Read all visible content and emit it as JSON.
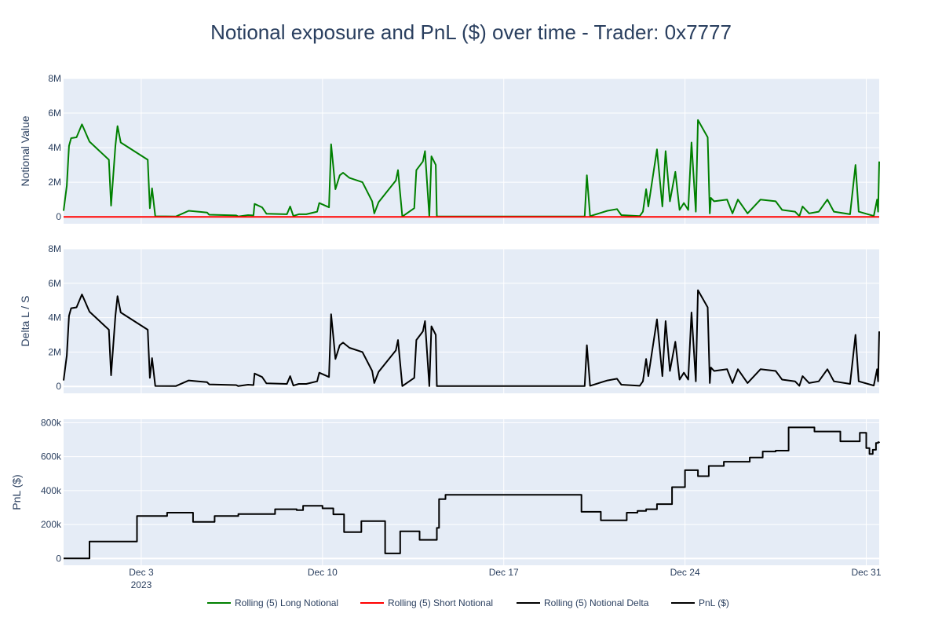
{
  "chart_data": {
    "type": "line",
    "title": "Notional exposure and PnL ($) over time - Trader: 0x7777",
    "x_axis": {
      "ticks": [
        {
          "date": "2023-12-03",
          "label": "Dec 3",
          "sublabel": "2023"
        },
        {
          "date": "2023-12-10",
          "label": "Dec 10",
          "sublabel": ""
        },
        {
          "date": "2023-12-17",
          "label": "Dec 17",
          "sublabel": ""
        },
        {
          "date": "2023-12-24",
          "label": "Dec 24",
          "sublabel": ""
        },
        {
          "date": "2023-12-31",
          "label": "Dec 31",
          "sublabel": ""
        }
      ],
      "xlim": [
        "2023-11-30",
        "2023-12-31 12:00"
      ]
    },
    "panels": [
      {
        "ylabel": "Notional Value",
        "ylim": [
          -400000,
          8000000
        ],
        "yticks": [
          0,
          2000000,
          4000000,
          6000000,
          8000000
        ],
        "ytick_labels": [
          "0",
          "2M",
          "4M",
          "6M",
          "8M"
        ],
        "series": [
          {
            "name": "Rolling (5) Long Notional",
            "color": "#008000",
            "points": [
              [
                "2023-11-30 00:00",
                350000
              ],
              [
                "2023-11-30 03:00",
                1800000
              ],
              [
                "2023-11-30 05:00",
                4100000
              ],
              [
                "2023-11-30 07:00",
                4550000
              ],
              [
                "2023-11-30 12:00",
                4600000
              ],
              [
                "2023-11-30 17:00",
                5350000
              ],
              [
                "2023-12-01 00:00",
                4350000
              ],
              [
                "2023-12-01 18:00",
                3300000
              ],
              [
                "2023-12-01 20:00",
                650000
              ],
              [
                "2023-12-02 00:00",
                4100000
              ],
              [
                "2023-12-02 02:00",
                5250000
              ],
              [
                "2023-12-02 05:00",
                4300000
              ],
              [
                "2023-12-03 06:00",
                3300000
              ],
              [
                "2023-12-03 08:00",
                500000
              ],
              [
                "2023-12-03 10:00",
                1650000
              ],
              [
                "2023-12-03 13:00",
                30000
              ],
              [
                "2023-12-04 08:00",
                20000
              ],
              [
                "2023-12-04 20:00",
                350000
              ],
              [
                "2023-12-05 13:00",
                250000
              ],
              [
                "2023-12-05 15:00",
                120000
              ],
              [
                "2023-12-06 16:00",
                80000
              ],
              [
                "2023-12-06 18:00",
                20000
              ],
              [
                "2023-12-07 03:00",
                100000
              ],
              [
                "2023-12-07 08:00",
                80000
              ],
              [
                "2023-12-07 09:00",
                750000
              ],
              [
                "2023-12-07 16:00",
                550000
              ],
              [
                "2023-12-07 20:00",
                180000
              ],
              [
                "2023-12-08 15:00",
                150000
              ],
              [
                "2023-12-08 18:00",
                600000
              ],
              [
                "2023-12-08 21:00",
                50000
              ],
              [
                "2023-12-09 02:00",
                150000
              ],
              [
                "2023-12-09 09:00",
                150000
              ],
              [
                "2023-12-09 19:00",
                300000
              ],
              [
                "2023-12-09 21:00",
                800000
              ],
              [
                "2023-12-10 06:00",
                550000
              ],
              [
                "2023-12-10 08:00",
                4200000
              ],
              [
                "2023-12-10 10:00",
                2900000
              ],
              [
                "2023-12-10 12:00",
                1600000
              ],
              [
                "2023-12-10 16:00",
                2400000
              ],
              [
                "2023-12-10 19:00",
                2550000
              ],
              [
                "2023-12-11 01:00",
                2250000
              ],
              [
                "2023-12-11 13:00",
                2000000
              ],
              [
                "2023-12-11 22:00",
                900000
              ],
              [
                "2023-12-12 00:00",
                200000
              ],
              [
                "2023-12-12 04:00",
                850000
              ],
              [
                "2023-12-12 20:00",
                2100000
              ],
              [
                "2023-12-12 22:00",
                2700000
              ],
              [
                "2023-12-13 02:00",
                20000
              ],
              [
                "2023-12-13 13:00",
                500000
              ],
              [
                "2023-12-13 15:00",
                2700000
              ],
              [
                "2023-12-13 21:00",
                3200000
              ],
              [
                "2023-12-13 23:00",
                3800000
              ],
              [
                "2023-12-14 03:00",
                20000
              ],
              [
                "2023-12-14 05:00",
                3500000
              ],
              [
                "2023-12-14 09:00",
                3000000
              ],
              [
                "2023-12-14 10:00",
                20000
              ],
              [
                "2023-12-20 03:00",
                20000
              ],
              [
                "2023-12-20 05:00",
                2400000
              ],
              [
                "2023-12-20 08:00",
                40000
              ],
              [
                "2023-12-21 00:00",
                350000
              ],
              [
                "2023-12-21 09:00",
                450000
              ],
              [
                "2023-12-21 13:00",
                100000
              ],
              [
                "2023-12-22 06:00",
                40000
              ],
              [
                "2023-12-22 09:00",
                300000
              ],
              [
                "2023-12-22 12:00",
                1600000
              ],
              [
                "2023-12-22 14:00",
                600000
              ],
              [
                "2023-12-22 22:00",
                3900000
              ],
              [
                "2023-12-23 03:00",
                600000
              ],
              [
                "2023-12-23 06:00",
                3800000
              ],
              [
                "2023-12-23 10:00",
                900000
              ],
              [
                "2023-12-23 15:00",
                2600000
              ],
              [
                "2023-12-23 19:00",
                400000
              ],
              [
                "2023-12-23 23:00",
                800000
              ],
              [
                "2023-12-24 03:00",
                400000
              ],
              [
                "2023-12-24 06:00",
                4300000
              ],
              [
                "2023-12-24 10:00",
                300000
              ],
              [
                "2023-12-24 12:00",
                5600000
              ],
              [
                "2023-12-24 21:00",
                4600000
              ],
              [
                "2023-12-24 23:00",
                200000
              ],
              [
                "2023-12-25 00:00",
                1100000
              ],
              [
                "2023-12-25 03:00",
                900000
              ],
              [
                "2023-12-25 15:00",
                1000000
              ],
              [
                "2023-12-25 20:00",
                200000
              ],
              [
                "2023-12-26 01:00",
                1000000
              ],
              [
                "2023-12-26 10:00",
                200000
              ],
              [
                "2023-12-26 22:00",
                1000000
              ],
              [
                "2023-12-27 12:00",
                900000
              ],
              [
                "2023-12-27 18:00",
                400000
              ],
              [
                "2023-12-28 06:00",
                300000
              ],
              [
                "2023-12-28 10:00",
                40000
              ],
              [
                "2023-12-28 13:00",
                600000
              ],
              [
                "2023-12-28 19:00",
                200000
              ],
              [
                "2023-12-29 04:00",
                300000
              ],
              [
                "2023-12-29 12:00",
                1000000
              ],
              [
                "2023-12-29 18:00",
                300000
              ],
              [
                "2023-12-30 09:00",
                150000
              ],
              [
                "2023-12-30 14:00",
                3000000
              ],
              [
                "2023-12-30 17:00",
                300000
              ],
              [
                "2023-12-31 07:00",
                50000
              ],
              [
                "2023-12-31 10:00",
                1000000
              ],
              [
                "2023-12-31 11:00",
                300000
              ],
              [
                "2023-12-31 12:00",
                3200000
              ]
            ]
          },
          {
            "name": "Rolling (5) Short Notional",
            "color": "#ff0000",
            "points": [
              [
                "2023-11-30 00:00",
                0
              ],
              [
                "2023-12-31 12:00",
                0
              ]
            ]
          }
        ]
      },
      {
        "ylabel": "Delta L / S",
        "ylim": [
          -400000,
          8000000
        ],
        "yticks": [
          0,
          2000000,
          4000000,
          6000000,
          8000000
        ],
        "ytick_labels": [
          "0",
          "2M",
          "4M",
          "6M",
          "8M"
        ],
        "series": [
          {
            "name": "Rolling (5) Notional Delta",
            "color": "#000000",
            "same_as_panel_0_series_0": true
          }
        ]
      },
      {
        "ylabel": "PnL ($)",
        "ylim": [
          -40000,
          820000
        ],
        "yticks": [
          0,
          200000,
          400000,
          600000,
          800000
        ],
        "ytick_labels": [
          "0",
          "200k",
          "400k",
          "600k",
          "800k"
        ],
        "series": [
          {
            "name": "PnL ($)",
            "color": "#000000",
            "step": true,
            "points": [
              [
                "2023-11-30 00:00",
                0
              ],
              [
                "2023-12-01 00:00",
                100000
              ],
              [
                "2023-12-02 20:00",
                250000
              ],
              [
                "2023-12-04 00:00",
                270000
              ],
              [
                "2023-12-05 00:00",
                215000
              ],
              [
                "2023-12-05 20:00",
                250000
              ],
              [
                "2023-12-06 18:00",
                262000
              ],
              [
                "2023-12-08 04:00",
                290000
              ],
              [
                "2023-12-09 00:00",
                285000
              ],
              [
                "2023-12-09 06:00",
                310000
              ],
              [
                "2023-12-10 00:00",
                295000
              ],
              [
                "2023-12-10 10:00",
                260000
              ],
              [
                "2023-12-10 20:00",
                155000
              ],
              [
                "2023-12-11 12:00",
                220000
              ],
              [
                "2023-12-12 10:00",
                30000
              ],
              [
                "2023-12-13 00:00",
                160000
              ],
              [
                "2023-12-13 18:00",
                110000
              ],
              [
                "2023-12-14 10:00",
                180000
              ],
              [
                "2023-12-14 12:00",
                350000
              ],
              [
                "2023-12-14 18:00",
                375000
              ],
              [
                "2023-12-20 00:00",
                275000
              ],
              [
                "2023-12-20 18:00",
                225000
              ],
              [
                "2023-12-21 18:00",
                270000
              ],
              [
                "2023-12-22 04:00",
                280000
              ],
              [
                "2023-12-22 12:00",
                290000
              ],
              [
                "2023-12-22 22:00",
                320000
              ],
              [
                "2023-12-23 12:00",
                420000
              ],
              [
                "2023-12-24 00:00",
                520000
              ],
              [
                "2023-12-24 12:00",
                485000
              ],
              [
                "2023-12-24 22:00",
                545000
              ],
              [
                "2023-12-25 12:00",
                570000
              ],
              [
                "2023-12-26 12:00",
                595000
              ],
              [
                "2023-12-27 00:00",
                630000
              ],
              [
                "2023-12-27 12:00",
                635000
              ],
              [
                "2023-12-28 00:00",
                772000
              ],
              [
                "2023-12-29 00:00",
                748000
              ],
              [
                "2023-12-30 00:00",
                690000
              ],
              [
                "2023-12-30 18:00",
                740000
              ],
              [
                "2023-12-31 00:00",
                650000
              ],
              [
                "2023-12-31 03:00",
                615000
              ],
              [
                "2023-12-31 06:00",
                640000
              ],
              [
                "2023-12-31 09:00",
                680000
              ],
              [
                "2023-12-31 11:00",
                685000
              ],
              [
                "2023-12-31 12:00",
                687000
              ]
            ]
          }
        ]
      }
    ],
    "legend": {
      "placement": "bottom-center",
      "entries": [
        {
          "label": "Rolling (5) Long Notional",
          "color": "#008000"
        },
        {
          "label": "Rolling (5) Short Notional",
          "color": "#ff0000"
        },
        {
          "label": "Rolling (5) Notional Delta",
          "color": "#000000"
        },
        {
          "label": "PnL ($)",
          "color": "#000000"
        }
      ]
    },
    "grid": true,
    "plot_background": "#e5ecf6"
  }
}
